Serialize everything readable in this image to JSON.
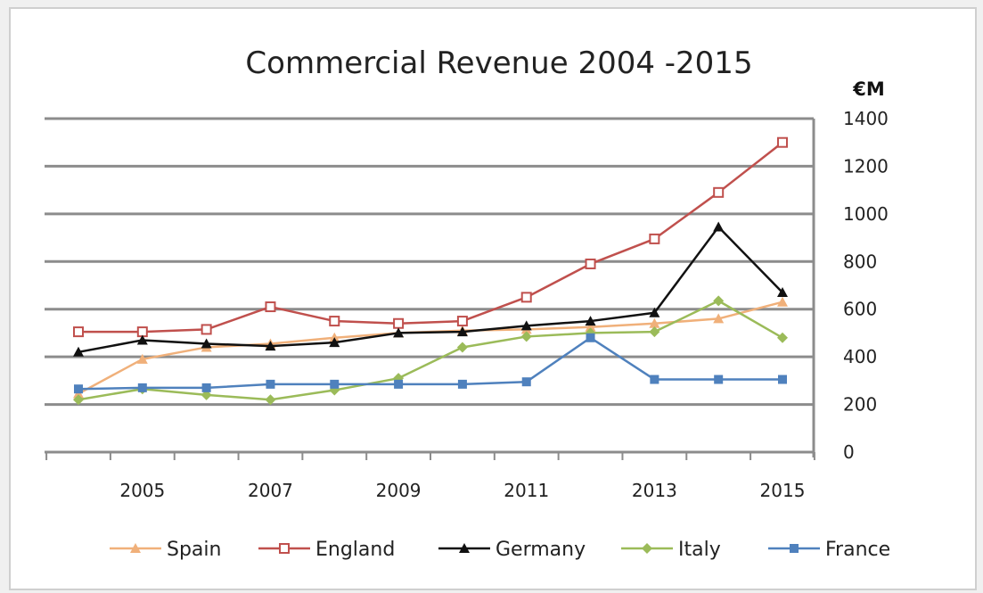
{
  "chart_data": {
    "type": "line",
    "title": "Commercial Revenue 2004 -2015",
    "ylabel": "€M",
    "ylim": [
      0,
      1400
    ],
    "yticks": [
      "0",
      "200",
      "400",
      "600",
      "800",
      "1000",
      "1200",
      "1400"
    ],
    "xticks": [
      "2005",
      "2007",
      "2009",
      "2011",
      "2013",
      "2015"
    ],
    "x": [
      2004,
      2005,
      2006,
      2007,
      2008,
      2009,
      2010,
      2011,
      2012,
      2013,
      2014,
      2015
    ],
    "grid": true,
    "legend_position": "bottom",
    "series": [
      {
        "name": "Spain",
        "color": "#f0b07a",
        "marker": "triangle",
        "values": [
          245,
          390,
          440,
          455,
          480,
          500,
          510,
          515,
          525,
          540,
          560,
          630
        ]
      },
      {
        "name": "England",
        "color": "#c0504d",
        "marker": "open-square",
        "values": [
          505,
          505,
          515,
          610,
          550,
          540,
          550,
          650,
          790,
          895,
          1090,
          1300
        ]
      },
      {
        "name": "Germany",
        "color": "#111111",
        "marker": "triangle",
        "values": [
          420,
          470,
          455,
          445,
          460,
          500,
          505,
          530,
          550,
          585,
          945,
          670
        ]
      },
      {
        "name": "Italy",
        "color": "#9bbb59",
        "marker": "diamond",
        "values": [
          220,
          265,
          240,
          220,
          260,
          310,
          440,
          485,
          500,
          505,
          635,
          480
        ]
      },
      {
        "name": "France",
        "color": "#4f81bd",
        "marker": "square",
        "values": [
          265,
          270,
          270,
          285,
          285,
          285,
          285,
          295,
          480,
          305,
          305,
          305
        ]
      }
    ]
  }
}
